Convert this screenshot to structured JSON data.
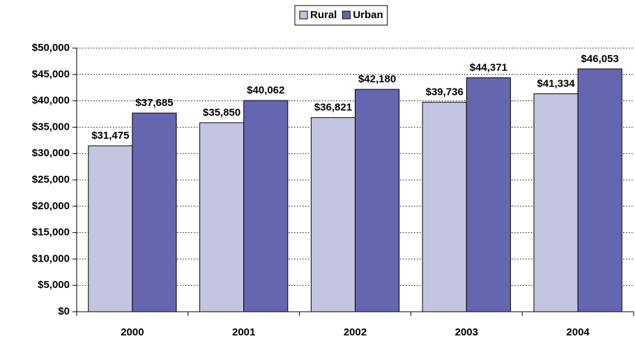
{
  "chart_data": {
    "type": "bar",
    "categories": [
      "2000",
      "2001",
      "2002",
      "2003",
      "2004"
    ],
    "series": [
      {
        "name": "Rural",
        "color": "#c4c4e0",
        "values": [
          31475,
          35850,
          36821,
          39736,
          41334
        ],
        "value_labels": [
          "$31,475",
          "$35,850",
          "$36,821",
          "$39,736",
          "$41,334"
        ]
      },
      {
        "name": "Urban",
        "color": "#6666b0",
        "values": [
          37685,
          40062,
          42180,
          44371,
          46053
        ],
        "value_labels": [
          "$37,685",
          "$40,062",
          "$42,180",
          "$44,371",
          "$46,053"
        ]
      }
    ],
    "ylim": [
      0,
      50000
    ],
    "yticks": [
      {
        "value": 0,
        "label": "$0"
      },
      {
        "value": 5000,
        "label": "$5,000"
      },
      {
        "value": 10000,
        "label": "$10,000"
      },
      {
        "value": 15000,
        "label": "$15,000"
      },
      {
        "value": 20000,
        "label": "$20,000"
      },
      {
        "value": 25000,
        "label": "$25,000"
      },
      {
        "value": 30000,
        "label": "$30,000"
      },
      {
        "value": 35000,
        "label": "$35,000"
      },
      {
        "value": 40000,
        "label": "$40,000"
      },
      {
        "value": 45000,
        "label": "$45,000"
      },
      {
        "value": 50000,
        "label": "$50,000"
      }
    ],
    "grid": true,
    "legend": "top"
  }
}
